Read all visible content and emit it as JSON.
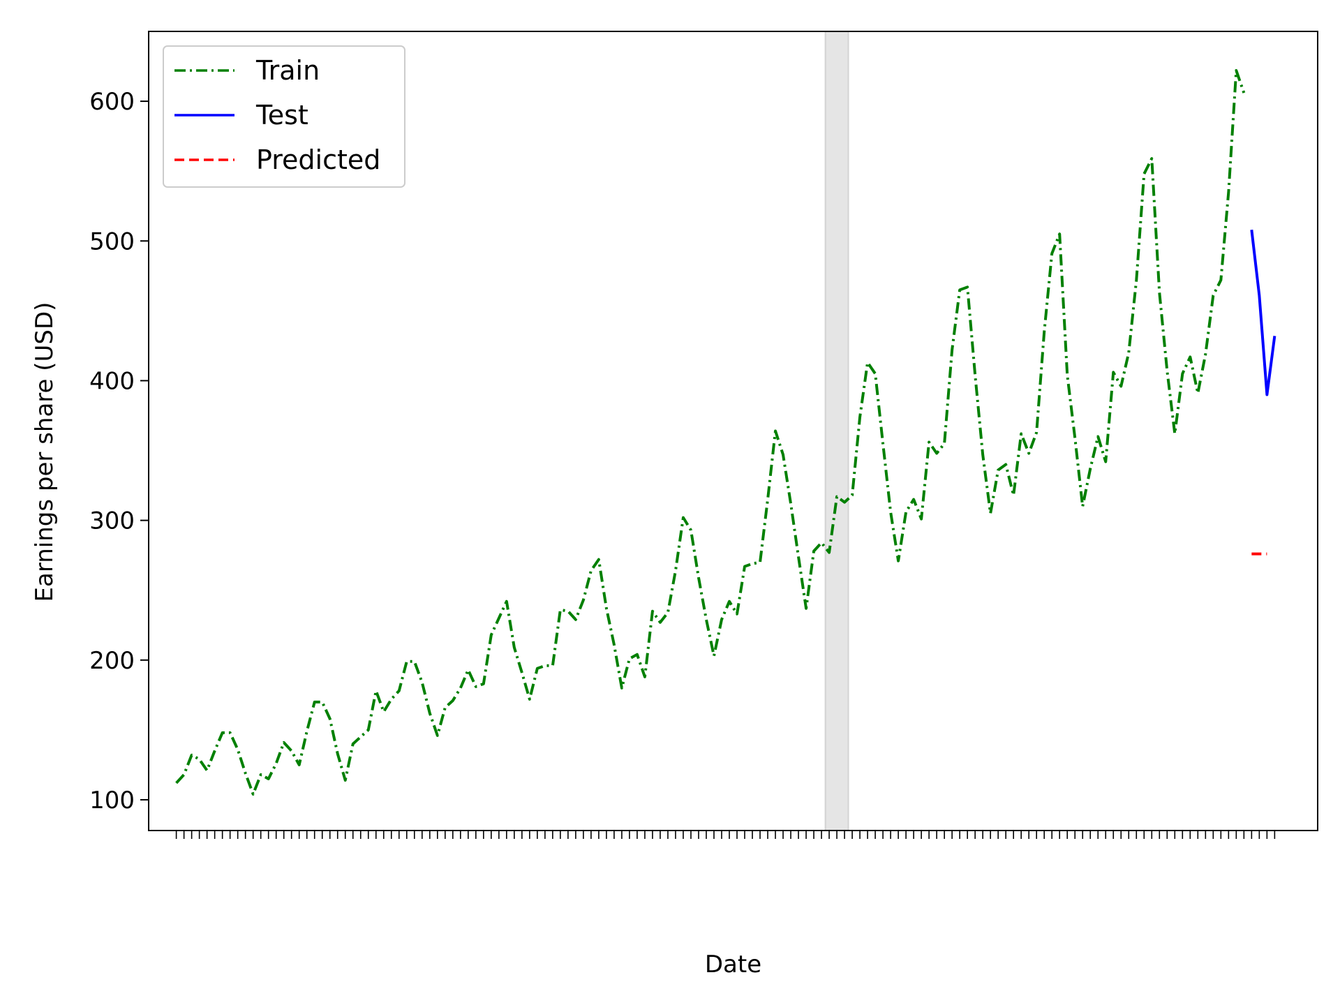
{
  "chart_data": {
    "type": "line",
    "xlabel": "Date",
    "ylabel": "Earnings per share (USD)",
    "ylim": [
      78,
      650
    ],
    "yticks": [
      100,
      200,
      300,
      400,
      500,
      600
    ],
    "grid": false,
    "legend_position": "top-left",
    "x_index_count": 144,
    "shaded_region": {
      "x_start": 84.5,
      "x_end": 87.5,
      "color": "#bfbfbf"
    },
    "series": [
      {
        "name": "Train",
        "color": "#008000",
        "style": "dashdot",
        "x_start": 0,
        "values": [
          112,
          118,
          132,
          129,
          121,
          135,
          148,
          148,
          136,
          119,
          104,
          118,
          115,
          126,
          141,
          135,
          125,
          149,
          170,
          170,
          158,
          133,
          114,
          140,
          145,
          150,
          178,
          163,
          172,
          178,
          199,
          199,
          184,
          162,
          146,
          166,
          171,
          180,
          193,
          181,
          183,
          218,
          230,
          242,
          209,
          191,
          172,
          194,
          196,
          196,
          236,
          235,
          229,
          243,
          264,
          272,
          237,
          211,
          180,
          201,
          204,
          188,
          235,
          227,
          234,
          264,
          302,
          293,
          259,
          229,
          203,
          229,
          242,
          233,
          267,
          269,
          270,
          315,
          364,
          347,
          312,
          274,
          237,
          278,
          284,
          277,
          317,
          313,
          318,
          374,
          413,
          405,
          355,
          306,
          271,
          306,
          315,
          301,
          356,
          348,
          355,
          422,
          465,
          467,
          404,
          347,
          305,
          336,
          340,
          318,
          362,
          348,
          363,
          435,
          491,
          505,
          404,
          359,
          310,
          337,
          360,
          342,
          406,
          396,
          420,
          472,
          548,
          559,
          463,
          407,
          362,
          405,
          417,
          391,
          419,
          461,
          472,
          535,
          622,
          606
        ]
      },
      {
        "name": "Test",
        "color": "#0000ff",
        "style": "solid",
        "x_start": 140,
        "values": [
          508,
          461,
          390,
          432
        ]
      },
      {
        "name": "Predicted",
        "color": "#ff0000",
        "style": "dashed",
        "x_start": 140,
        "values": [
          276,
          276,
          276
        ]
      }
    ]
  }
}
